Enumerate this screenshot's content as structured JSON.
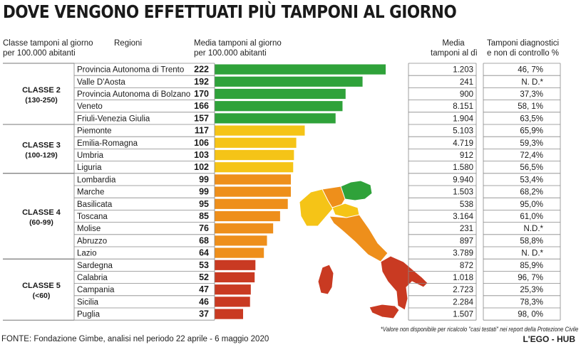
{
  "title": "DOVE VENGONO EFFETTUATI PIÙ TAMPONI AL GIORNO",
  "headers": {
    "classe": [
      "Classe tamponi al giorno",
      "per 100.000 abitanti"
    ],
    "regioni": "Regioni",
    "media100k": [
      "Media tamponi al giorno",
      "per 100.000 abitanti"
    ],
    "media": [
      "Media",
      "tamponi al dì"
    ],
    "diagnostici": [
      "Tamponi diagnostici",
      "e non di controllo %"
    ]
  },
  "classes": [
    {
      "name": "CLASSE 2",
      "range": "(130-250)",
      "color": "#2fa23a",
      "rows": 5
    },
    {
      "name": "CLASSE 3",
      "range": "(100-129)",
      "color": "#f5c417",
      "rows": 4
    },
    {
      "name": "CLASSE 4",
      "range": "(60-99)",
      "color": "#ee8f1b",
      "rows": 7
    },
    {
      "name": "CLASSE 5",
      "range": "(<60)",
      "color": "#c93a22",
      "rows": 5
    }
  ],
  "chart_data": {
    "type": "bar",
    "orientation": "horizontal",
    "categories": [
      "Provincia Autonoma di Trento",
      "Valle D'Aosta",
      "Provincia Autonoma di Bolzano",
      "Veneto",
      "Friuli-Venezia Giulia",
      "Piemonte",
      "Emilia-Romagna",
      "Umbria",
      "Liguria",
      "Lombardia",
      "Marche",
      "Basilicata",
      "Toscana",
      "Molise",
      "Abruzzo",
      "Lazio",
      "Sardegna",
      "Calabria",
      "Campania",
      "Sicilia",
      "Puglia"
    ],
    "values": [
      222,
      192,
      170,
      166,
      157,
      117,
      106,
      103,
      102,
      99,
      99,
      95,
      85,
      76,
      68,
      64,
      53,
      52,
      47,
      46,
      37
    ],
    "values_label": [
      "222",
      "192",
      "170",
      "166",
      "157",
      "117",
      "106",
      "103",
      "102",
      "99",
      "99",
      "95",
      "85",
      "76",
      "68",
      "64",
      "53",
      "52",
      "47",
      "46",
      "37"
    ],
    "media_tamponi": [
      "1.203",
      "241",
      "900",
      "8.151",
      "1.904",
      "5.103",
      "4.719",
      "912",
      "1.580",
      "9.940",
      "1.503",
      "538",
      "3.164",
      "231",
      "897",
      "3.789",
      "872",
      "1.018",
      "2.723",
      "2.284",
      "1.507"
    ],
    "diagnostici_pct": [
      "46, 7%",
      "N. D.*",
      "37,3%",
      "58, 1%",
      "63,5%",
      "65,9%",
      "59,3%",
      "72,4%",
      "56,5%",
      "53,4%",
      "68,2%",
      "95,0%",
      "61,0%",
      "N.D.*",
      "58,8%",
      "N. D.*",
      "85,9%",
      "96, 7%",
      "25,3%",
      "78,3%",
      "98, 0%"
    ],
    "xlim": [
      0,
      222
    ]
  },
  "footer": "FONTE: Fondazione Gimbe, analisi nel periodo 22 aprile - 6 maggio 2020",
  "note": "*Valore non disponibile per ricalcolo \"casi testati\" nei report della Protezione Civile",
  "brand": "L'EGO - HUB"
}
